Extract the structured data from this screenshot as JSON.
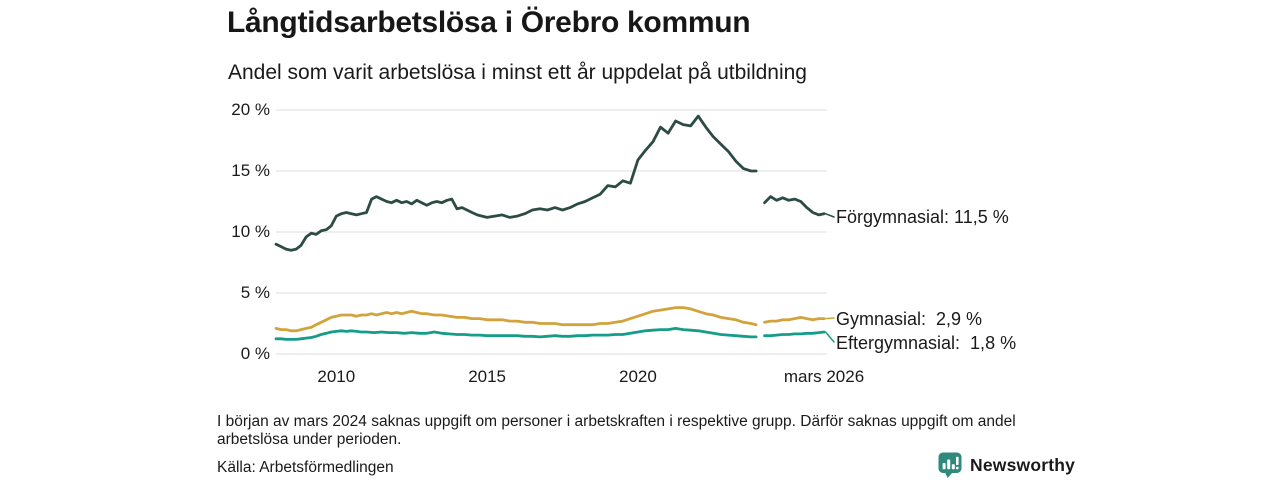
{
  "header": {
    "title": "Långtidsarbetslösa i Örebro kommun",
    "subtitle": "Andel som varit arbetslösa i minst ett år uppdelat på utbildning"
  },
  "chart_data": {
    "type": "line",
    "title": "Långtidsarbetslösa i Örebro kommun",
    "subtitle": "Andel som varit arbetslösa i minst ett år uppdelat på utbildning",
    "xlabel": "",
    "ylabel": "",
    "xlim": [
      2008,
      2026.17
    ],
    "ylim": [
      0,
      20
    ],
    "grid": "horizontal",
    "grid_color": "#e3e3e3",
    "gap_period": "början av mars 2024",
    "yticks": [
      {
        "value": 20,
        "label": "20 %"
      },
      {
        "value": 15,
        "label": "15 %"
      },
      {
        "value": 10,
        "label": "10 %"
      },
      {
        "value": 5,
        "label": "5 %"
      },
      {
        "value": 0,
        "label": "0 %"
      }
    ],
    "xticks": [
      {
        "value": 2010,
        "label": "2010"
      },
      {
        "value": 2015,
        "label": "2015"
      },
      {
        "value": 2020,
        "label": "2020"
      },
      {
        "value": 2026.17,
        "label": "mars 2026"
      }
    ],
    "series": [
      {
        "name": "Förgymnasial",
        "color": "#2d4b45",
        "end_value": 11.5,
        "end_label": "Förgymnasial: 11,5 %",
        "points": [
          [
            2008.0,
            9.0
          ],
          [
            2008.17,
            8.8
          ],
          [
            2008.33,
            8.6
          ],
          [
            2008.5,
            8.5
          ],
          [
            2008.67,
            8.6
          ],
          [
            2008.83,
            8.9
          ],
          [
            2009.0,
            9.6
          ],
          [
            2009.17,
            9.9
          ],
          [
            2009.33,
            9.8
          ],
          [
            2009.5,
            10.1
          ],
          [
            2009.67,
            10.2
          ],
          [
            2009.83,
            10.5
          ],
          [
            2010.0,
            11.3
          ],
          [
            2010.17,
            11.5
          ],
          [
            2010.33,
            11.6
          ],
          [
            2010.5,
            11.5
          ],
          [
            2010.67,
            11.4
          ],
          [
            2010.83,
            11.5
          ],
          [
            2011.0,
            11.6
          ],
          [
            2011.17,
            12.7
          ],
          [
            2011.33,
            12.9
          ],
          [
            2011.5,
            12.7
          ],
          [
            2011.67,
            12.5
          ],
          [
            2011.83,
            12.4
          ],
          [
            2012.0,
            12.6
          ],
          [
            2012.17,
            12.4
          ],
          [
            2012.33,
            12.5
          ],
          [
            2012.5,
            12.3
          ],
          [
            2012.67,
            12.6
          ],
          [
            2012.83,
            12.4
          ],
          [
            2013.0,
            12.2
          ],
          [
            2013.17,
            12.4
          ],
          [
            2013.33,
            12.5
          ],
          [
            2013.5,
            12.4
          ],
          [
            2013.67,
            12.6
          ],
          [
            2013.83,
            12.7
          ],
          [
            2014.0,
            11.9
          ],
          [
            2014.17,
            12.0
          ],
          [
            2014.33,
            11.8
          ],
          [
            2014.5,
            11.6
          ],
          [
            2014.67,
            11.4
          ],
          [
            2014.83,
            11.3
          ],
          [
            2015.0,
            11.2
          ],
          [
            2015.25,
            11.3
          ],
          [
            2015.5,
            11.4
          ],
          [
            2015.75,
            11.2
          ],
          [
            2016.0,
            11.3
          ],
          [
            2016.25,
            11.5
          ],
          [
            2016.5,
            11.8
          ],
          [
            2016.75,
            11.9
          ],
          [
            2017.0,
            11.8
          ],
          [
            2017.25,
            12.0
          ],
          [
            2017.5,
            11.8
          ],
          [
            2017.75,
            12.0
          ],
          [
            2018.0,
            12.3
          ],
          [
            2018.25,
            12.5
          ],
          [
            2018.5,
            12.8
          ],
          [
            2018.75,
            13.1
          ],
          [
            2019.0,
            13.8
          ],
          [
            2019.25,
            13.7
          ],
          [
            2019.5,
            14.2
          ],
          [
            2019.75,
            14.0
          ],
          [
            2020.0,
            15.9
          ],
          [
            2020.25,
            16.7
          ],
          [
            2020.5,
            17.4
          ],
          [
            2020.75,
            18.6
          ],
          [
            2021.0,
            18.1
          ],
          [
            2021.25,
            19.1
          ],
          [
            2021.5,
            18.8
          ],
          [
            2021.75,
            18.7
          ],
          [
            2022.0,
            19.5
          ],
          [
            2022.25,
            18.6
          ],
          [
            2022.5,
            17.8
          ],
          [
            2022.75,
            17.2
          ],
          [
            2023.0,
            16.6
          ],
          [
            2023.25,
            15.8
          ],
          [
            2023.5,
            15.2
          ],
          [
            2023.75,
            15.0
          ],
          [
            2023.92,
            15.0
          ],
          [
            2024.05,
            null
          ],
          [
            2024.2,
            12.4
          ],
          [
            2024.4,
            12.9
          ],
          [
            2024.6,
            12.6
          ],
          [
            2024.8,
            12.8
          ],
          [
            2025.0,
            12.6
          ],
          [
            2025.2,
            12.7
          ],
          [
            2025.4,
            12.5
          ],
          [
            2025.6,
            12.0
          ],
          [
            2025.8,
            11.6
          ],
          [
            2026.0,
            11.4
          ],
          [
            2026.17,
            11.5
          ]
        ]
      },
      {
        "name": "Gymnasial",
        "color": "#d2a33d",
        "end_value": 2.9,
        "end_label": "Gymnasial:  2,9 %",
        "points": [
          [
            2008.0,
            2.1
          ],
          [
            2008.17,
            2.0
          ],
          [
            2008.33,
            2.0
          ],
          [
            2008.5,
            1.9
          ],
          [
            2008.67,
            1.9
          ],
          [
            2008.83,
            2.0
          ],
          [
            2009.0,
            2.1
          ],
          [
            2009.17,
            2.2
          ],
          [
            2009.33,
            2.4
          ],
          [
            2009.5,
            2.6
          ],
          [
            2009.67,
            2.8
          ],
          [
            2009.83,
            3.0
          ],
          [
            2010.0,
            3.1
          ],
          [
            2010.17,
            3.2
          ],
          [
            2010.33,
            3.2
          ],
          [
            2010.5,
            3.2
          ],
          [
            2010.67,
            3.1
          ],
          [
            2010.83,
            3.2
          ],
          [
            2011.0,
            3.2
          ],
          [
            2011.17,
            3.3
          ],
          [
            2011.33,
            3.2
          ],
          [
            2011.5,
            3.3
          ],
          [
            2011.67,
            3.4
          ],
          [
            2011.83,
            3.3
          ],
          [
            2012.0,
            3.4
          ],
          [
            2012.17,
            3.3
          ],
          [
            2012.33,
            3.4
          ],
          [
            2012.5,
            3.5
          ],
          [
            2012.67,
            3.4
          ],
          [
            2012.83,
            3.3
          ],
          [
            2013.0,
            3.3
          ],
          [
            2013.25,
            3.2
          ],
          [
            2013.5,
            3.2
          ],
          [
            2013.75,
            3.1
          ],
          [
            2014.0,
            3.0
          ],
          [
            2014.25,
            3.0
          ],
          [
            2014.5,
            2.9
          ],
          [
            2014.75,
            2.9
          ],
          [
            2015.0,
            2.8
          ],
          [
            2015.25,
            2.8
          ],
          [
            2015.5,
            2.8
          ],
          [
            2015.75,
            2.7
          ],
          [
            2016.0,
            2.7
          ],
          [
            2016.25,
            2.6
          ],
          [
            2016.5,
            2.6
          ],
          [
            2016.75,
            2.5
          ],
          [
            2017.0,
            2.5
          ],
          [
            2017.25,
            2.5
          ],
          [
            2017.5,
            2.4
          ],
          [
            2017.75,
            2.4
          ],
          [
            2018.0,
            2.4
          ],
          [
            2018.25,
            2.4
          ],
          [
            2018.5,
            2.4
          ],
          [
            2018.75,
            2.5
          ],
          [
            2019.0,
            2.5
          ],
          [
            2019.25,
            2.6
          ],
          [
            2019.5,
            2.7
          ],
          [
            2019.75,
            2.9
          ],
          [
            2020.0,
            3.1
          ],
          [
            2020.25,
            3.3
          ],
          [
            2020.5,
            3.5
          ],
          [
            2020.75,
            3.6
          ],
          [
            2021.0,
            3.7
          ],
          [
            2021.25,
            3.8
          ],
          [
            2021.5,
            3.8
          ],
          [
            2021.75,
            3.7
          ],
          [
            2022.0,
            3.5
          ],
          [
            2022.25,
            3.3
          ],
          [
            2022.5,
            3.2
          ],
          [
            2022.75,
            3.0
          ],
          [
            2023.0,
            2.9
          ],
          [
            2023.25,
            2.8
          ],
          [
            2023.5,
            2.6
          ],
          [
            2023.75,
            2.5
          ],
          [
            2023.92,
            2.4
          ],
          [
            2024.05,
            null
          ],
          [
            2024.2,
            2.6
          ],
          [
            2024.4,
            2.7
          ],
          [
            2024.6,
            2.7
          ],
          [
            2024.8,
            2.8
          ],
          [
            2025.0,
            2.8
          ],
          [
            2025.2,
            2.9
          ],
          [
            2025.4,
            3.0
          ],
          [
            2025.6,
            2.9
          ],
          [
            2025.8,
            2.8
          ],
          [
            2026.0,
            2.9
          ],
          [
            2026.17,
            2.9
          ]
        ]
      },
      {
        "name": "Eftergymnasial",
        "color": "#169c8a",
        "end_value": 1.8,
        "end_label": "Eftergymnasial:  1,8 %",
        "points": [
          [
            2008.0,
            1.25
          ],
          [
            2008.17,
            1.25
          ],
          [
            2008.33,
            1.2
          ],
          [
            2008.5,
            1.2
          ],
          [
            2008.67,
            1.2
          ],
          [
            2008.83,
            1.25
          ],
          [
            2009.0,
            1.3
          ],
          [
            2009.17,
            1.35
          ],
          [
            2009.33,
            1.45
          ],
          [
            2009.5,
            1.6
          ],
          [
            2009.67,
            1.7
          ],
          [
            2009.83,
            1.8
          ],
          [
            2010.0,
            1.85
          ],
          [
            2010.17,
            1.9
          ],
          [
            2010.33,
            1.85
          ],
          [
            2010.5,
            1.9
          ],
          [
            2010.67,
            1.85
          ],
          [
            2010.83,
            1.8
          ],
          [
            2011.0,
            1.8
          ],
          [
            2011.25,
            1.75
          ],
          [
            2011.5,
            1.8
          ],
          [
            2011.75,
            1.75
          ],
          [
            2012.0,
            1.75
          ],
          [
            2012.25,
            1.7
          ],
          [
            2012.5,
            1.75
          ],
          [
            2012.75,
            1.7
          ],
          [
            2013.0,
            1.7
          ],
          [
            2013.25,
            1.8
          ],
          [
            2013.5,
            1.7
          ],
          [
            2013.75,
            1.65
          ],
          [
            2014.0,
            1.6
          ],
          [
            2014.25,
            1.6
          ],
          [
            2014.5,
            1.55
          ],
          [
            2014.75,
            1.55
          ],
          [
            2015.0,
            1.5
          ],
          [
            2015.25,
            1.5
          ],
          [
            2015.5,
            1.5
          ],
          [
            2015.75,
            1.5
          ],
          [
            2016.0,
            1.5
          ],
          [
            2016.25,
            1.45
          ],
          [
            2016.5,
            1.45
          ],
          [
            2016.75,
            1.4
          ],
          [
            2017.0,
            1.45
          ],
          [
            2017.25,
            1.5
          ],
          [
            2017.5,
            1.45
          ],
          [
            2017.75,
            1.45
          ],
          [
            2018.0,
            1.5
          ],
          [
            2018.25,
            1.5
          ],
          [
            2018.5,
            1.55
          ],
          [
            2018.75,
            1.55
          ],
          [
            2019.0,
            1.55
          ],
          [
            2019.25,
            1.6
          ],
          [
            2019.5,
            1.6
          ],
          [
            2019.75,
            1.7
          ],
          [
            2020.0,
            1.8
          ],
          [
            2020.25,
            1.9
          ],
          [
            2020.5,
            1.95
          ],
          [
            2020.75,
            2.0
          ],
          [
            2021.0,
            2.0
          ],
          [
            2021.25,
            2.1
          ],
          [
            2021.5,
            2.0
          ],
          [
            2021.75,
            1.95
          ],
          [
            2022.0,
            1.9
          ],
          [
            2022.25,
            1.8
          ],
          [
            2022.5,
            1.7
          ],
          [
            2022.75,
            1.6
          ],
          [
            2023.0,
            1.55
          ],
          [
            2023.25,
            1.5
          ],
          [
            2023.5,
            1.45
          ],
          [
            2023.75,
            1.4
          ],
          [
            2023.92,
            1.4
          ],
          [
            2024.05,
            null
          ],
          [
            2024.2,
            1.5
          ],
          [
            2024.4,
            1.5
          ],
          [
            2024.6,
            1.55
          ],
          [
            2024.8,
            1.6
          ],
          [
            2025.0,
            1.6
          ],
          [
            2025.2,
            1.65
          ],
          [
            2025.4,
            1.65
          ],
          [
            2025.6,
            1.7
          ],
          [
            2025.8,
            1.7
          ],
          [
            2026.0,
            1.75
          ],
          [
            2026.17,
            1.8
          ]
        ]
      }
    ]
  },
  "footer": {
    "note": "I början av mars 2024 saknas uppgift om personer i arbetskraften i respektive grupp. Därför saknas uppgift om andel arbetslösa under perioden.",
    "source": "Källa: Arbetsförmedlingen"
  },
  "branding": {
    "name": "Newsworthy",
    "color": "#2f8a7d"
  }
}
